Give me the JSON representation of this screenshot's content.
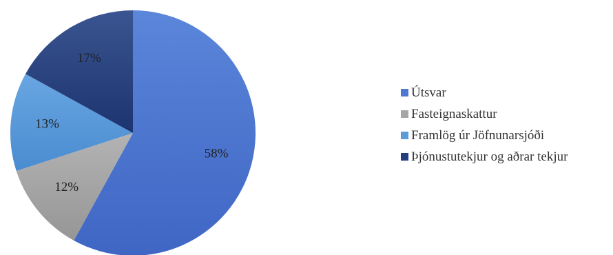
{
  "chart_data": {
    "type": "pie",
    "categories": [
      "Útsvar",
      "Fasteignaskattur",
      "Framlög úr Jöfnunarsjóði",
      "Þjónustutekjur og aðrar tekjur"
    ],
    "values": [
      58,
      12,
      13,
      17
    ],
    "data_labels": [
      "58%",
      "12%",
      "13%",
      "17%"
    ],
    "colors": [
      "#4F78D1",
      "#A6A6A6",
      "#5B9BD9",
      "#233F80"
    ],
    "start_angle_deg": 0,
    "direction": "clockwise",
    "legend_position": "right"
  }
}
